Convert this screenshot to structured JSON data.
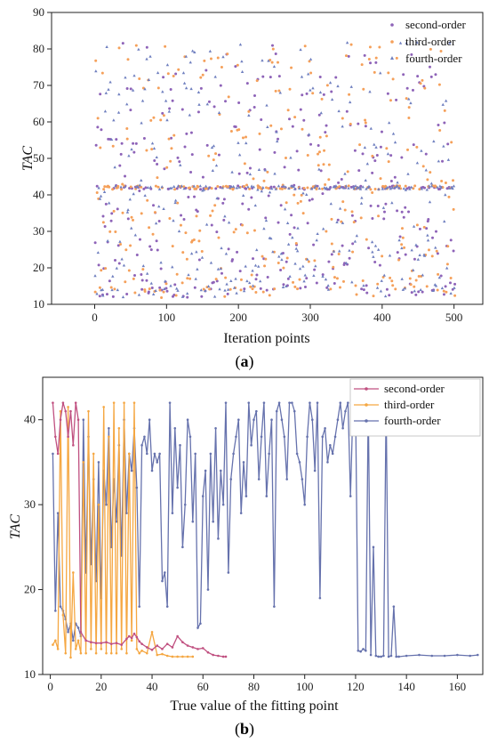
{
  "colors": {
    "second": "#8e63b8",
    "third": "#f5a05a",
    "fourth": "#6f7fbf",
    "second_b": "#c05080",
    "third_b": "#f5a742",
    "fourth_b": "#6672ad"
  },
  "chart_data": [
    {
      "type": "scatter",
      "panel_label_letter": "a",
      "xlabel": "Iteration points",
      "ylabel": "TAC",
      "xlim": [
        -60,
        540
      ],
      "ylim": [
        10,
        90
      ],
      "xticks": [
        0,
        100,
        200,
        300,
        400,
        500
      ],
      "yticks": [
        10,
        20,
        30,
        40,
        50,
        60,
        70,
        80,
        90
      ],
      "legend": "top-right",
      "series": [
        {
          "name": "second-order",
          "marker": "dot",
          "color": "#8e63b8"
        },
        {
          "name": "third-order",
          "marker": "dot",
          "color": "#f5a05a"
        },
        {
          "name": "fourth-order",
          "marker": "triangle",
          "color": "#6f7fbf"
        }
      ],
      "description_of_points": "About 500 iterations per series; values scattered 12-82 with a dense band near 42 and clusters near 12-14."
    },
    {
      "type": "line",
      "panel_label_letter": "b",
      "xlabel": "True value of the fitting point",
      "ylabel": "TAC",
      "xlim": [
        -3,
        170
      ],
      "ylim": [
        10,
        45
      ],
      "xticks": [
        0,
        20,
        40,
        60,
        80,
        100,
        120,
        140,
        160
      ],
      "yticks": [
        10,
        20,
        30,
        40
      ],
      "legend": "top-right",
      "series": [
        {
          "name": "second-order",
          "color": "#c05080",
          "x": [
            1,
            2,
            3,
            4,
            5,
            6,
            7,
            8,
            9,
            10,
            11,
            12,
            14,
            16,
            18,
            20,
            22,
            24,
            26,
            28,
            30,
            31,
            32,
            33,
            34,
            35,
            36,
            38,
            40,
            42,
            44,
            46,
            48,
            50,
            52,
            54,
            56,
            58,
            60,
            62,
            64,
            66,
            68,
            69
          ],
          "y": [
            42,
            38,
            36,
            40,
            42,
            41,
            38,
            41,
            37,
            42,
            40,
            15,
            14,
            13.8,
            13.7,
            13.7,
            13.8,
            13.6,
            13.7,
            13.5,
            14.2,
            14.5,
            14.3,
            14.8,
            14.4,
            13.9,
            13.6,
            13.2,
            12.9,
            13.4,
            13.0,
            13.6,
            13.2,
            14.5,
            13.8,
            13.4,
            13.2,
            13.0,
            13.1,
            12.6,
            12.3,
            12.2,
            12.1,
            12.1
          ]
        },
        {
          "name": "third-order",
          "color": "#f5a742",
          "x": [
            1,
            2,
            3,
            4,
            5,
            6,
            7,
            8,
            9,
            10,
            11,
            12,
            13,
            14,
            15,
            16,
            17,
            18,
            19,
            20,
            21,
            22,
            23,
            24,
            25,
            26,
            27,
            28,
            29,
            30,
            31,
            32,
            33,
            34,
            35,
            36,
            38,
            40,
            42,
            44,
            46,
            48,
            50,
            52,
            54,
            56
          ],
          "y": [
            13.5,
            14,
            13,
            41,
            17,
            12.5,
            41.5,
            12,
            22,
            13,
            14,
            12.5,
            35,
            12.5,
            41,
            13,
            36,
            12.5,
            30,
            13,
            41.5,
            12.5,
            38,
            12.5,
            42,
            12.5,
            39,
            13,
            42,
            12.5,
            36,
            14,
            42,
            13,
            12.5,
            12.8,
            12.5,
            15,
            12.3,
            12.4,
            12.2,
            12.1,
            12.1,
            12.1,
            12.1,
            12.1
          ]
        },
        {
          "name": "fourth-order",
          "color": "#6672ad",
          "x": [
            1,
            2,
            3,
            4,
            5,
            6,
            7,
            8,
            9,
            10,
            11,
            12,
            13,
            14,
            15,
            16,
            17,
            18,
            19,
            20,
            21,
            22,
            23,
            24,
            25,
            26,
            27,
            28,
            29,
            30,
            31,
            32,
            33,
            34,
            35,
            36,
            37,
            38,
            39,
            40,
            41,
            42,
            43,
            44,
            45,
            46,
            47,
            48,
            49,
            50,
            51,
            52,
            53,
            54,
            55,
            56,
            57,
            58,
            59,
            60,
            61,
            62,
            63,
            64,
            65,
            66,
            67,
            68,
            69,
            70,
            71,
            72,
            73,
            74,
            75,
            76,
            77,
            78,
            79,
            80,
            81,
            82,
            83,
            84,
            85,
            86,
            87,
            88,
            89,
            90,
            91,
            92,
            93,
            94,
            95,
            96,
            97,
            98,
            99,
            100,
            101,
            102,
            103,
            104,
            105,
            106,
            107,
            108,
            109,
            110,
            111,
            112,
            113,
            114,
            115,
            116,
            117,
            118,
            119,
            120,
            121,
            122,
            123,
            124,
            125,
            126,
            127,
            128,
            129,
            130,
            131,
            132,
            133,
            134,
            135,
            136,
            137,
            140,
            145,
            150,
            155,
            160,
            165,
            168
          ],
          "y": [
            36,
            17.5,
            29,
            18,
            17.5,
            16.5,
            15,
            16,
            14,
            16,
            15.5,
            14.5,
            40,
            22,
            38,
            23,
            33,
            21,
            35,
            19,
            34,
            30,
            39,
            25,
            33,
            28,
            37,
            24,
            40,
            29,
            36,
            34,
            39,
            32,
            18,
            37,
            38,
            36,
            40,
            34,
            36,
            35,
            36,
            21,
            22,
            18,
            42,
            29,
            39,
            32,
            37,
            25,
            30,
            40,
            38,
            28,
            36,
            15.5,
            16,
            31,
            34,
            20,
            36,
            28,
            39,
            26,
            34,
            30,
            42,
            22,
            33,
            36,
            38,
            40,
            29,
            35,
            31,
            42,
            37,
            40,
            41,
            33,
            38,
            42,
            31,
            36,
            40,
            18,
            41,
            42,
            40,
            38,
            33,
            42,
            42,
            41,
            36,
            35,
            33,
            30,
            38,
            42,
            40,
            34,
            42,
            19,
            38,
            39,
            35,
            37,
            36,
            38,
            40,
            42,
            39,
            41,
            42,
            31,
            42,
            42,
            12.8,
            12.7,
            13,
            12.8,
            42,
            12.3,
            25,
            12.2,
            12.1,
            12.1,
            12.2,
            42,
            12.1,
            12.2,
            18,
            12.1,
            12.1,
            12.2,
            12.3,
            12.2,
            12.2,
            12.3,
            12.2,
            12.3
          ]
        }
      ]
    }
  ]
}
